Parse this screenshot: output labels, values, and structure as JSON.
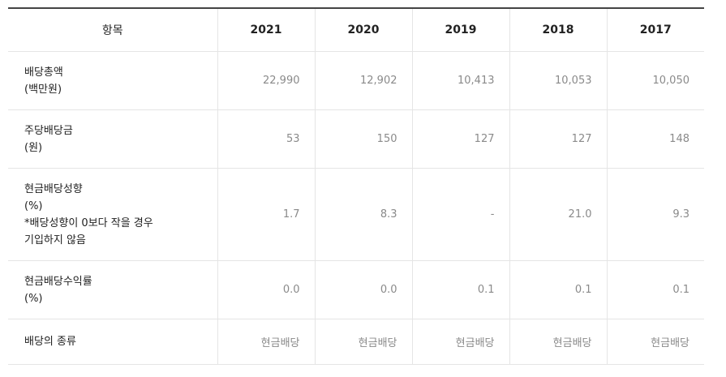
{
  "header": {
    "item_label": "항목",
    "years": [
      "2021",
      "2020",
      "2019",
      "2018",
      "2017"
    ]
  },
  "rows": [
    {
      "label_lines": [
        "배당총액",
        "(백만원)"
      ],
      "values": [
        "22,990",
        "12,902",
        "10,413",
        "10,053",
        "10,050"
      ]
    },
    {
      "label_lines": [
        "주당배당금",
        "(원)"
      ],
      "values": [
        "53",
        "150",
        "127",
        "127",
        "148"
      ]
    },
    {
      "label_lines": [
        "현금배당성향",
        "(%)",
        "*배당성향이 0보다 작을 경우",
        "기입하지 않음"
      ],
      "values": [
        "1.7",
        "8.3",
        "-",
        "21.0",
        "9.3"
      ]
    },
    {
      "label_lines": [
        "현금배당수익률",
        "(%)"
      ],
      "values": [
        "0.0",
        "0.0",
        "0.1",
        "0.1",
        "0.1"
      ]
    },
    {
      "label_lines": [
        "배당의 종류"
      ],
      "values": [
        "현금배당",
        "현금배당",
        "현금배당",
        "현금배당",
        "현금배당"
      ]
    }
  ]
}
